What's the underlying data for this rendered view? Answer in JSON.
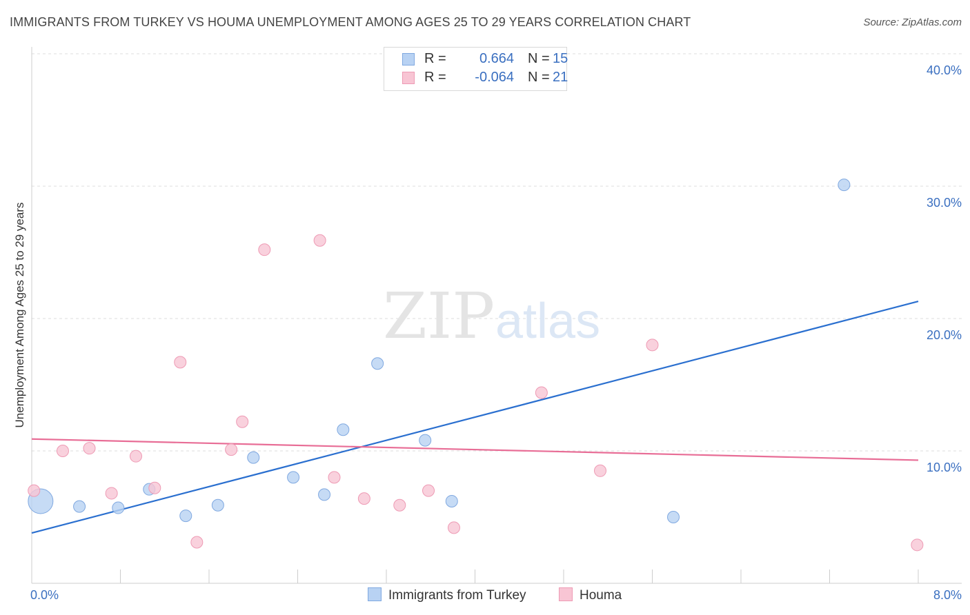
{
  "title": "IMMIGRANTS FROM TURKEY VS HOUMA UNEMPLOYMENT AMONG AGES 25 TO 29 YEARS CORRELATION CHART",
  "source": "Source: ZipAtlas.com",
  "watermark": {
    "zip": "ZIP",
    "atlas": "atlas"
  },
  "legend": {
    "rows": [
      {
        "r_label": "R =",
        "r_value": "0.664",
        "n_label": "N =",
        "n_value": "15"
      },
      {
        "r_label": "R =",
        "r_value": "-0.064",
        "n_label": "N =",
        "n_value": "21"
      }
    ]
  },
  "colors": {
    "blue_fill": "#b8d2f3",
    "blue_stroke": "#7fa8e0",
    "blue_line": "#2a6fcf",
    "pink_fill": "#f8c5d4",
    "pink_stroke": "#ee9ab4",
    "pink_line": "#e86d96",
    "tick_text": "#3a6fc0",
    "grid": "#dddddd"
  },
  "chart_data": {
    "type": "scatter",
    "title": "IMMIGRANTS FROM TURKEY VS HOUMA UNEMPLOYMENT AMONG AGES 25 TO 29 YEARS CORRELATION CHART",
    "xlabel": "",
    "ylabel": "Unemployment Among Ages 25 to 29 years",
    "xlim": [
      0,
      8
    ],
    "ylim": [
      0,
      40
    ],
    "x_tick_labels": [
      "0.0%",
      "8.0%"
    ],
    "y_ticks": [
      10,
      20,
      30,
      40
    ],
    "y_tick_labels": [
      "10.0%",
      "20.0%",
      "30.0%",
      "40.0%"
    ],
    "grid": true,
    "legend_position": "top-center",
    "series": [
      {
        "name": "Immigrants from Turkey",
        "color": "blue",
        "points": [
          {
            "x": 0.08,
            "y": 6.2,
            "size": "large"
          },
          {
            "x": 0.43,
            "y": 5.8
          },
          {
            "x": 0.78,
            "y": 5.7
          },
          {
            "x": 1.06,
            "y": 7.1
          },
          {
            "x": 1.39,
            "y": 5.1
          },
          {
            "x": 1.68,
            "y": 5.9
          },
          {
            "x": 2.0,
            "y": 9.5
          },
          {
            "x": 2.36,
            "y": 8.0
          },
          {
            "x": 2.64,
            "y": 6.7
          },
          {
            "x": 2.81,
            "y": 11.6
          },
          {
            "x": 3.12,
            "y": 16.6
          },
          {
            "x": 3.55,
            "y": 10.8
          },
          {
            "x": 3.79,
            "y": 6.2
          },
          {
            "x": 5.79,
            "y": 5.0
          },
          {
            "x": 7.33,
            "y": 30.1
          }
        ],
        "trend": {
          "x": [
            0.0,
            8.0
          ],
          "y": [
            3.8,
            21.3
          ]
        }
      },
      {
        "name": "Houma",
        "color": "pink",
        "points": [
          {
            "x": 0.02,
            "y": 7.0
          },
          {
            "x": 0.28,
            "y": 10.0
          },
          {
            "x": 0.52,
            "y": 10.2
          },
          {
            "x": 0.72,
            "y": 6.8
          },
          {
            "x": 0.94,
            "y": 9.6
          },
          {
            "x": 1.11,
            "y": 7.2
          },
          {
            "x": 1.34,
            "y": 16.7
          },
          {
            "x": 1.49,
            "y": 3.1
          },
          {
            "x": 1.8,
            "y": 10.1
          },
          {
            "x": 1.9,
            "y": 12.2
          },
          {
            "x": 2.1,
            "y": 25.2
          },
          {
            "x": 2.6,
            "y": 25.9
          },
          {
            "x": 2.73,
            "y": 8.0
          },
          {
            "x": 3.0,
            "y": 6.4
          },
          {
            "x": 3.32,
            "y": 5.9
          },
          {
            "x": 3.58,
            "y": 7.0
          },
          {
            "x": 3.81,
            "y": 4.2
          },
          {
            "x": 4.6,
            "y": 14.4
          },
          {
            "x": 5.13,
            "y": 8.5
          },
          {
            "x": 5.6,
            "y": 18.0
          },
          {
            "x": 7.99,
            "y": 2.9
          }
        ],
        "trend": {
          "x": [
            0.0,
            8.0
          ],
          "y": [
            10.9,
            9.3
          ]
        }
      }
    ]
  }
}
